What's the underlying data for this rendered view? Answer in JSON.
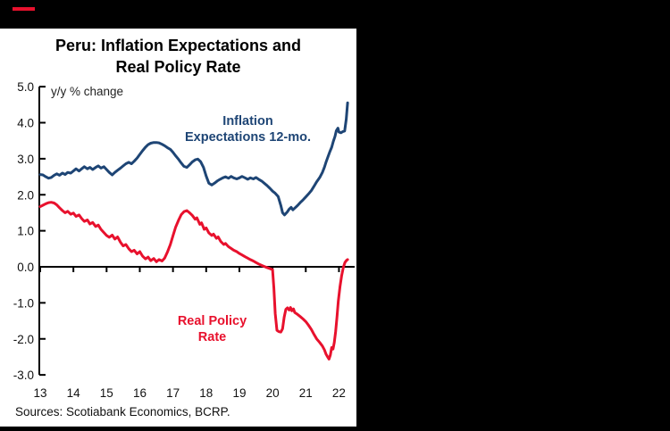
{
  "header": {
    "bar_color": "#000000",
    "accent_color": "#E8112D"
  },
  "chart_data": {
    "type": "line",
    "title": "Peru: Inflation Expectations and Real Policy Rate",
    "title_line1": "Peru: Inflation Expectations and",
    "title_line2": "Real Policy Rate",
    "axis_note": "y/y % change",
    "source_note": "Sources: Scotiabank Economics, BCRP.",
    "grid": false,
    "legend_position": "in-chart annotations",
    "xlim": [
      13,
      22.5
    ],
    "ylim": [
      -3.0,
      5.0
    ],
    "x_tick_values": [
      13,
      14,
      15,
      16,
      17,
      18,
      19,
      20,
      21,
      22
    ],
    "x_tick_labels": [
      "13",
      "14",
      "15",
      "16",
      "17",
      "18",
      "19",
      "20",
      "21",
      "22"
    ],
    "y_tick_values": [
      5,
      4,
      3,
      2,
      1,
      0,
      -1,
      -2,
      -3
    ],
    "y_tick_labels": [
      "5.0",
      "4.0",
      "3.0",
      "2.0",
      "1.0",
      "0.0",
      "-1.0",
      "-2.0",
      "-3.0"
    ],
    "annotations": [
      {
        "line1": "Inflation",
        "line2": "Expectations 12-mo.",
        "color": "#1E4575"
      },
      {
        "line1": "Real Policy",
        "line2": "Rate",
        "color": "#E8112D"
      }
    ],
    "series": [
      {
        "name": "Inflation Expectations 12-mo.",
        "color": "#1E4575",
        "points": [
          [
            13.0,
            2.56
          ],
          [
            13.08,
            2.55
          ],
          [
            13.17,
            2.5
          ],
          [
            13.25,
            2.46
          ],
          [
            13.33,
            2.48
          ],
          [
            13.42,
            2.54
          ],
          [
            13.5,
            2.58
          ],
          [
            13.58,
            2.54
          ],
          [
            13.67,
            2.6
          ],
          [
            13.75,
            2.56
          ],
          [
            13.83,
            2.62
          ],
          [
            13.92,
            2.6
          ],
          [
            14.0,
            2.66
          ],
          [
            14.08,
            2.72
          ],
          [
            14.17,
            2.66
          ],
          [
            14.25,
            2.72
          ],
          [
            14.33,
            2.78
          ],
          [
            14.42,
            2.72
          ],
          [
            14.5,
            2.76
          ],
          [
            14.58,
            2.7
          ],
          [
            14.67,
            2.76
          ],
          [
            14.75,
            2.8
          ],
          [
            14.83,
            2.74
          ],
          [
            14.92,
            2.78
          ],
          [
            15.0,
            2.7
          ],
          [
            15.08,
            2.62
          ],
          [
            15.17,
            2.55
          ],
          [
            15.25,
            2.62
          ],
          [
            15.33,
            2.68
          ],
          [
            15.42,
            2.74
          ],
          [
            15.5,
            2.8
          ],
          [
            15.58,
            2.86
          ],
          [
            15.67,
            2.9
          ],
          [
            15.75,
            2.86
          ],
          [
            15.83,
            2.93
          ],
          [
            15.92,
            3.02
          ],
          [
            16.0,
            3.12
          ],
          [
            16.08,
            3.22
          ],
          [
            16.17,
            3.32
          ],
          [
            16.25,
            3.39
          ],
          [
            16.33,
            3.43
          ],
          [
            16.42,
            3.45
          ],
          [
            16.5,
            3.45
          ],
          [
            16.58,
            3.44
          ],
          [
            16.67,
            3.4
          ],
          [
            16.75,
            3.36
          ],
          [
            16.83,
            3.31
          ],
          [
            16.92,
            3.26
          ],
          [
            17.0,
            3.18
          ],
          [
            17.08,
            3.08
          ],
          [
            17.17,
            2.98
          ],
          [
            17.25,
            2.88
          ],
          [
            17.33,
            2.79
          ],
          [
            17.42,
            2.76
          ],
          [
            17.5,
            2.83
          ],
          [
            17.58,
            2.91
          ],
          [
            17.67,
            2.97
          ],
          [
            17.75,
            2.99
          ],
          [
            17.83,
            2.92
          ],
          [
            17.92,
            2.76
          ],
          [
            18.0,
            2.52
          ],
          [
            18.08,
            2.32
          ],
          [
            18.17,
            2.27
          ],
          [
            18.25,
            2.32
          ],
          [
            18.33,
            2.38
          ],
          [
            18.42,
            2.43
          ],
          [
            18.5,
            2.47
          ],
          [
            18.58,
            2.5
          ],
          [
            18.67,
            2.46
          ],
          [
            18.75,
            2.51
          ],
          [
            18.83,
            2.47
          ],
          [
            18.92,
            2.44
          ],
          [
            19.0,
            2.47
          ],
          [
            19.08,
            2.51
          ],
          [
            19.17,
            2.47
          ],
          [
            19.25,
            2.43
          ],
          [
            19.33,
            2.47
          ],
          [
            19.42,
            2.44
          ],
          [
            19.5,
            2.48
          ],
          [
            19.58,
            2.43
          ],
          [
            19.67,
            2.38
          ],
          [
            19.75,
            2.32
          ],
          [
            19.83,
            2.26
          ],
          [
            19.92,
            2.18
          ],
          [
            20.0,
            2.1
          ],
          [
            20.08,
            2.04
          ],
          [
            20.17,
            1.95
          ],
          [
            20.25,
            1.7
          ],
          [
            20.3,
            1.5
          ],
          [
            20.36,
            1.44
          ],
          [
            20.44,
            1.52
          ],
          [
            20.5,
            1.6
          ],
          [
            20.56,
            1.65
          ],
          [
            20.61,
            1.58
          ],
          [
            20.67,
            1.63
          ],
          [
            20.75,
            1.7
          ],
          [
            20.83,
            1.78
          ],
          [
            20.92,
            1.86
          ],
          [
            21.0,
            1.94
          ],
          [
            21.08,
            2.02
          ],
          [
            21.17,
            2.12
          ],
          [
            21.25,
            2.24
          ],
          [
            21.33,
            2.36
          ],
          [
            21.42,
            2.48
          ],
          [
            21.5,
            2.62
          ],
          [
            21.56,
            2.76
          ],
          [
            21.61,
            2.9
          ],
          [
            21.67,
            3.06
          ],
          [
            21.72,
            3.18
          ],
          [
            21.78,
            3.32
          ],
          [
            21.83,
            3.48
          ],
          [
            21.88,
            3.62
          ],
          [
            21.92,
            3.78
          ],
          [
            21.97,
            3.85
          ],
          [
            22.0,
            3.74
          ],
          [
            22.06,
            3.72
          ],
          [
            22.11,
            3.75
          ],
          [
            22.17,
            3.77
          ],
          [
            22.22,
            4.1
          ],
          [
            22.26,
            4.55
          ]
        ]
      },
      {
        "name": "Real Policy Rate",
        "color": "#E8112D",
        "points": [
          [
            13.0,
            1.67
          ],
          [
            13.08,
            1.71
          ],
          [
            13.17,
            1.75
          ],
          [
            13.25,
            1.78
          ],
          [
            13.33,
            1.79
          ],
          [
            13.42,
            1.77
          ],
          [
            13.5,
            1.72
          ],
          [
            13.58,
            1.64
          ],
          [
            13.67,
            1.56
          ],
          [
            13.75,
            1.5
          ],
          [
            13.83,
            1.54
          ],
          [
            13.92,
            1.46
          ],
          [
            14.0,
            1.49
          ],
          [
            14.08,
            1.4
          ],
          [
            14.17,
            1.44
          ],
          [
            14.25,
            1.34
          ],
          [
            14.33,
            1.26
          ],
          [
            14.42,
            1.3
          ],
          [
            14.5,
            1.19
          ],
          [
            14.58,
            1.23
          ],
          [
            14.67,
            1.12
          ],
          [
            14.75,
            1.16
          ],
          [
            14.83,
            1.04
          ],
          [
            14.92,
            0.95
          ],
          [
            15.0,
            0.87
          ],
          [
            15.08,
            0.82
          ],
          [
            15.17,
            0.88
          ],
          [
            15.25,
            0.77
          ],
          [
            15.33,
            0.83
          ],
          [
            15.42,
            0.68
          ],
          [
            15.5,
            0.58
          ],
          [
            15.58,
            0.62
          ],
          [
            15.67,
            0.5
          ],
          [
            15.75,
            0.42
          ],
          [
            15.83,
            0.46
          ],
          [
            15.92,
            0.36
          ],
          [
            16.0,
            0.42
          ],
          [
            16.08,
            0.3
          ],
          [
            16.17,
            0.22
          ],
          [
            16.25,
            0.27
          ],
          [
            16.33,
            0.17
          ],
          [
            16.42,
            0.23
          ],
          [
            16.5,
            0.14
          ],
          [
            16.58,
            0.2
          ],
          [
            16.67,
            0.16
          ],
          [
            16.75,
            0.24
          ],
          [
            16.83,
            0.4
          ],
          [
            16.92,
            0.62
          ],
          [
            17.0,
            0.86
          ],
          [
            17.08,
            1.1
          ],
          [
            17.17,
            1.3
          ],
          [
            17.25,
            1.45
          ],
          [
            17.33,
            1.53
          ],
          [
            17.42,
            1.56
          ],
          [
            17.5,
            1.5
          ],
          [
            17.58,
            1.43
          ],
          [
            17.67,
            1.32
          ],
          [
            17.72,
            1.36
          ],
          [
            17.81,
            1.18
          ],
          [
            17.86,
            1.22
          ],
          [
            17.94,
            1.04
          ],
          [
            18.0,
            1.08
          ],
          [
            18.08,
            0.94
          ],
          [
            18.17,
            0.87
          ],
          [
            18.22,
            0.91
          ],
          [
            18.31,
            0.79
          ],
          [
            18.36,
            0.83
          ],
          [
            18.44,
            0.7
          ],
          [
            18.53,
            0.62
          ],
          [
            18.58,
            0.65
          ],
          [
            18.67,
            0.56
          ],
          [
            18.75,
            0.51
          ],
          [
            18.83,
            0.46
          ],
          [
            18.92,
            0.42
          ],
          [
            19.0,
            0.37
          ],
          [
            19.08,
            0.33
          ],
          [
            19.17,
            0.28
          ],
          [
            19.25,
            0.24
          ],
          [
            19.33,
            0.2
          ],
          [
            19.42,
            0.16
          ],
          [
            19.5,
            0.12
          ],
          [
            19.58,
            0.08
          ],
          [
            19.67,
            0.04
          ],
          [
            19.75,
            0.01
          ],
          [
            19.83,
            -0.02
          ],
          [
            19.92,
            -0.05
          ],
          [
            20.0,
            -0.08
          ],
          [
            20.04,
            -0.6
          ],
          [
            20.08,
            -1.3
          ],
          [
            20.13,
            -1.76
          ],
          [
            20.19,
            -1.8
          ],
          [
            20.25,
            -1.81
          ],
          [
            20.3,
            -1.72
          ],
          [
            20.35,
            -1.4
          ],
          [
            20.4,
            -1.18
          ],
          [
            20.45,
            -1.14
          ],
          [
            20.5,
            -1.2
          ],
          [
            20.54,
            -1.13
          ],
          [
            20.58,
            -1.22
          ],
          [
            20.63,
            -1.17
          ],
          [
            20.67,
            -1.27
          ],
          [
            20.75,
            -1.32
          ],
          [
            20.83,
            -1.38
          ],
          [
            20.92,
            -1.45
          ],
          [
            21.0,
            -1.52
          ],
          [
            21.08,
            -1.62
          ],
          [
            21.17,
            -1.74
          ],
          [
            21.25,
            -1.88
          ],
          [
            21.33,
            -2.0
          ],
          [
            21.42,
            -2.1
          ],
          [
            21.5,
            -2.2
          ],
          [
            21.56,
            -2.3
          ],
          [
            21.61,
            -2.42
          ],
          [
            21.67,
            -2.52
          ],
          [
            21.7,
            -2.56
          ],
          [
            21.74,
            -2.45
          ],
          [
            21.78,
            -2.24
          ],
          [
            21.82,
            -2.28
          ],
          [
            21.86,
            -2.1
          ],
          [
            21.9,
            -1.8
          ],
          [
            21.94,
            -1.4
          ],
          [
            21.98,
            -0.95
          ],
          [
            22.03,
            -0.55
          ],
          [
            22.08,
            -0.25
          ],
          [
            22.13,
            -0.02
          ],
          [
            22.18,
            0.12
          ],
          [
            22.23,
            0.18
          ],
          [
            22.26,
            0.2
          ]
        ]
      }
    ]
  }
}
